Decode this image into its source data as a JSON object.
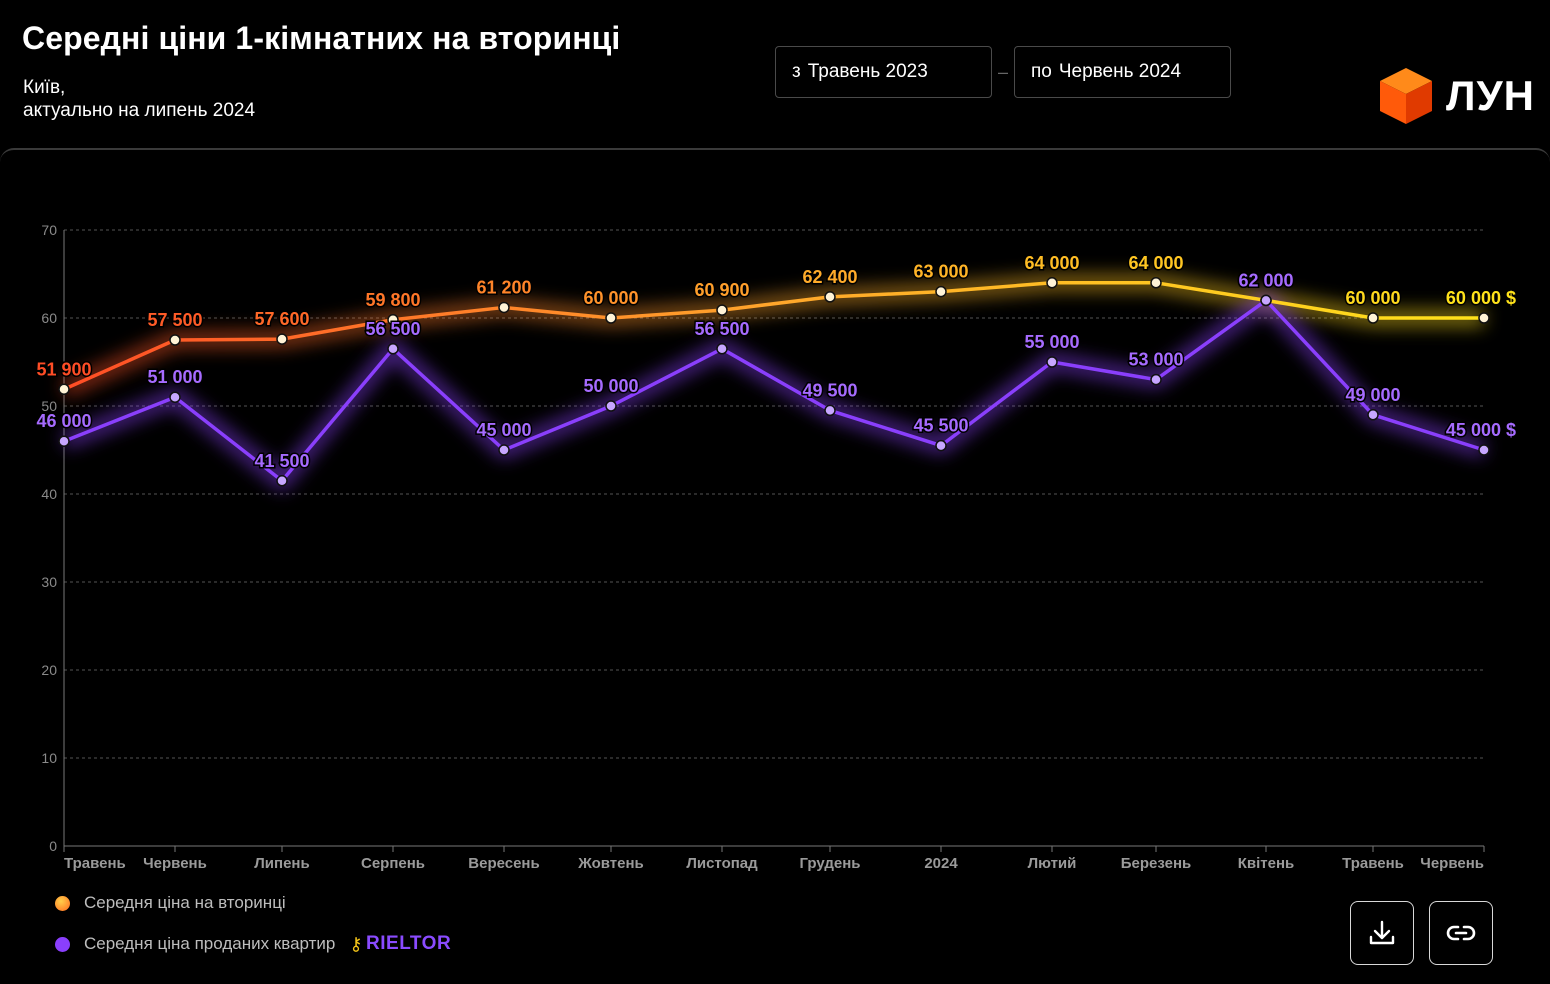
{
  "header": {
    "title": "Середні ціни 1-кімнатних на вторинці",
    "subtitle_line1": "Київ,",
    "subtitle_line2": "актуально на липень 2024"
  },
  "date_range": {
    "from_prefix": "з",
    "from_value": "Травень 2023",
    "separator": "–",
    "to_prefix": "по",
    "to_value": "Червень 2024"
  },
  "brand": {
    "logo_text": "ЛУН",
    "logo_icon": "orange-cube-icon"
  },
  "legend": {
    "series1_label": "Середня ціна на вторинці",
    "series2_label": "Середня ціна проданих квартир",
    "partner": "RIELTOR"
  },
  "actions": {
    "download_icon": "download-icon",
    "link_icon": "link-icon"
  },
  "colors": {
    "series1_start": "#ff4d26",
    "series1_mid": "#ffa62b",
    "series1_end": "#ffe21a",
    "series2": "#8a3ffc",
    "series2_label": "#a66bff"
  },
  "chart_data": {
    "type": "line",
    "categories": [
      "Травень",
      "Червень",
      "Липень",
      "Серпень",
      "Вересень",
      "Жовтень",
      "Листопад",
      "Грудень",
      "2024",
      "Лютий",
      "Березень",
      "Квітень",
      "Травень",
      "Червень"
    ],
    "ylim": [
      0,
      70
    ],
    "yticks": [
      0,
      10,
      20,
      30,
      40,
      50,
      60,
      70
    ],
    "grid": true,
    "unit_suffix": "$",
    "series": [
      {
        "name": "Середня ціна на вторинці",
        "values": [
          51.9,
          57.5,
          57.6,
          59.8,
          61.2,
          60.0,
          60.9,
          62.4,
          63.0,
          64.0,
          64.0,
          62.0,
          60.0,
          60.0
        ],
        "labels": [
          "51 900",
          "57 500",
          "57 600",
          "59 800",
          "61 200",
          "60 000",
          "60 900",
          "62 400",
          "63 000",
          "64 000",
          "64 000",
          "62 000",
          "60 000",
          "60 000 $"
        ]
      },
      {
        "name": "Середня ціна проданих квартир",
        "values": [
          46.0,
          51.0,
          41.5,
          56.5,
          45.0,
          50.0,
          56.5,
          49.5,
          45.5,
          55.0,
          53.0,
          62.0,
          49.0,
          45.0
        ],
        "labels": [
          "46 000",
          "51 000",
          "41 500",
          "56 500",
          "45 000",
          "50 000",
          "56 500",
          "49 500",
          "45 500",
          "55 000",
          "53 000",
          "62 000",
          "49 000",
          "45 000 $"
        ]
      }
    ]
  }
}
